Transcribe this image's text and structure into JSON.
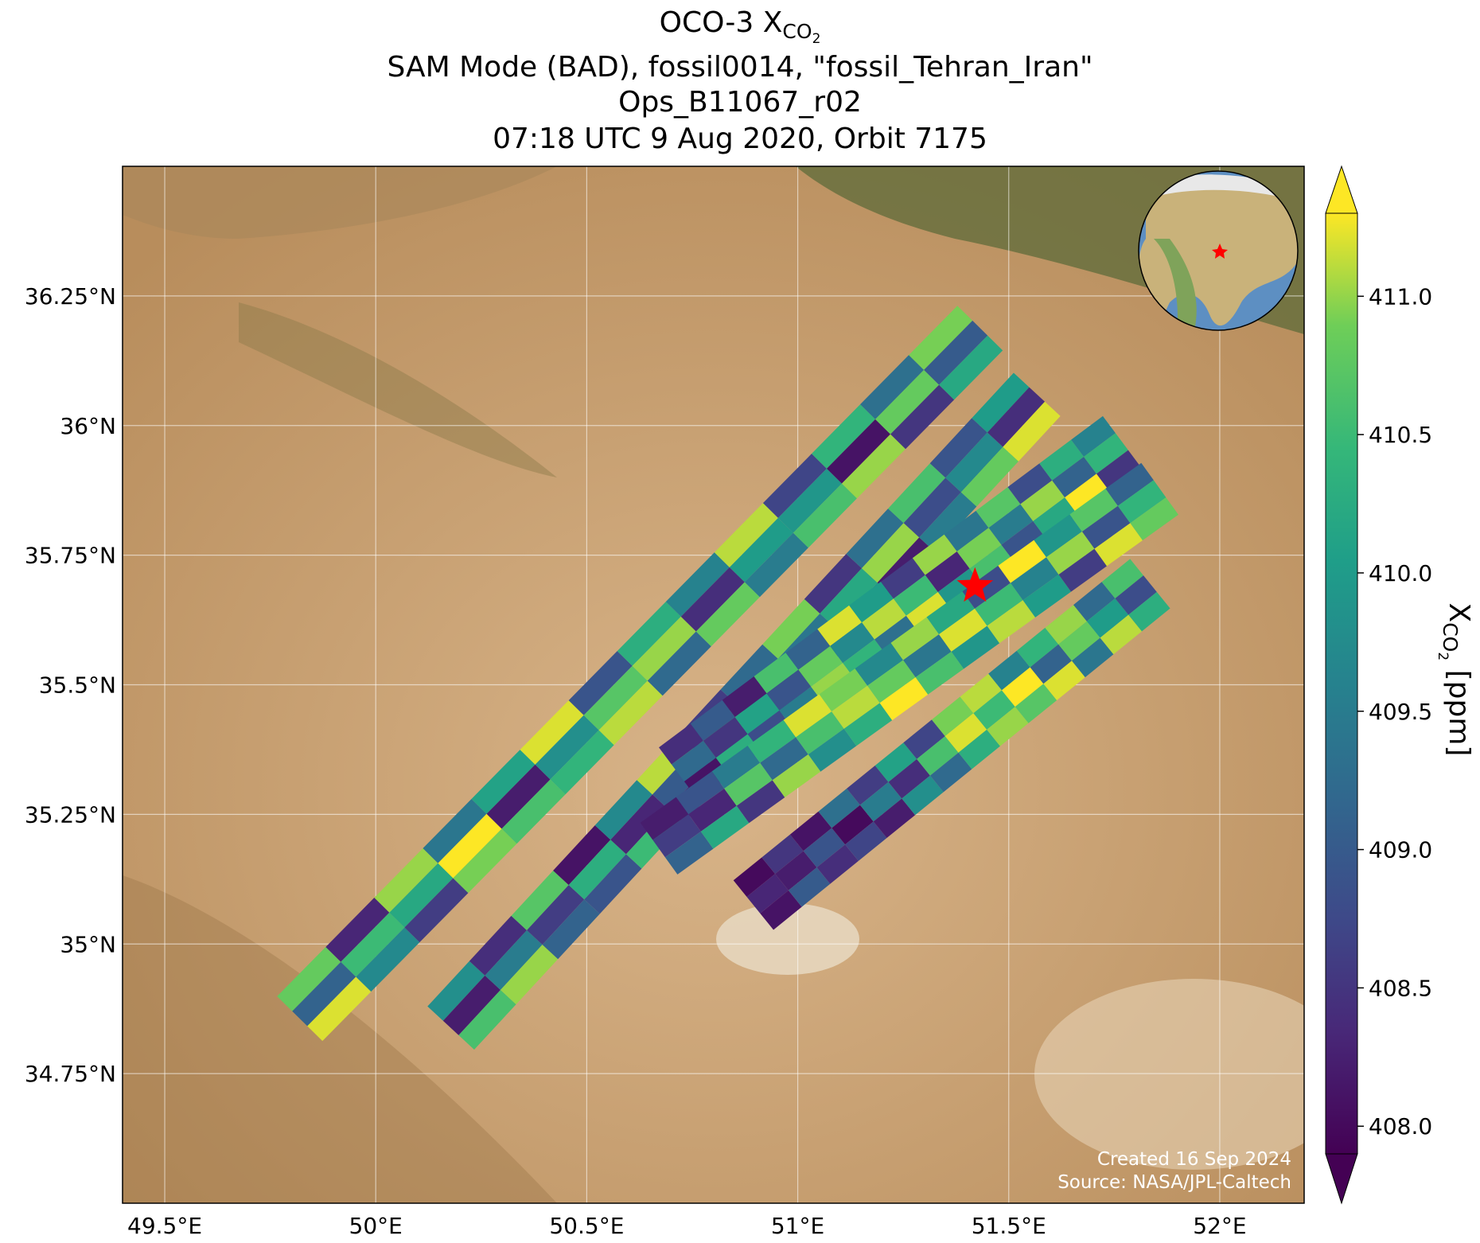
{
  "chart_data": {
    "type": "swath_map",
    "title": {
      "prefix": "OCO-3 X",
      "sub": "CO",
      "subsub": "2"
    },
    "subtitle_lines": [
      "SAM Mode (BAD), fossil0014, \"fossil_Tehran_Iran\"",
      "Ops_B11067_r02",
      "07:18 UTC 9 Aug 2020, Orbit 7175"
    ],
    "xlim": [
      49.4,
      52.2
    ],
    "ylim": [
      34.5,
      36.5
    ],
    "xticks": [
      {
        "value": 49.5,
        "label": "49.5°E"
      },
      {
        "value": 50,
        "label": "50°E"
      },
      {
        "value": 50.5,
        "label": "50.5°E"
      },
      {
        "value": 51,
        "label": "51°E"
      },
      {
        "value": 51.5,
        "label": "51.5°E"
      },
      {
        "value": 52,
        "label": "52°E"
      }
    ],
    "yticks": [
      {
        "value": 34.75,
        "label": "34.75°N"
      },
      {
        "value": 35,
        "label": "35°N"
      },
      {
        "value": 35.25,
        "label": "35.25°N"
      },
      {
        "value": 35.5,
        "label": "35.5°N"
      },
      {
        "value": 35.75,
        "label": "35.75°N"
      },
      {
        "value": 36,
        "label": "36°N"
      },
      {
        "value": 36.25,
        "label": "36.25°N"
      }
    ],
    "grid": true,
    "colormap": "viridis",
    "clim": [
      407.9,
      411.3
    ],
    "colorbar_ticks": [
      {
        "value": 408,
        "label": "408.0"
      },
      {
        "value": 408.5,
        "label": "408.5"
      },
      {
        "value": 409,
        "label": "409.0"
      },
      {
        "value": 409.5,
        "label": "409.5"
      },
      {
        "value": 410,
        "label": "410.0"
      },
      {
        "value": 410.5,
        "label": "410.5"
      },
      {
        "value": 411,
        "label": "411.0"
      }
    ],
    "colorbar_label": {
      "prefix": "X",
      "sub": "CO",
      "subsub": "2",
      "suffix": " [ppm]"
    },
    "target": {
      "lon": 51.42,
      "lat": 35.69,
      "color": "#ff0000"
    },
    "strips": [
      {
        "start": [
          49.82,
          34.856
        ],
        "end": [
          51.432,
          36.188
        ],
        "values": [
          [
            410.8,
            409.1,
            411.2
          ],
          [
            408.3,
            410.5,
            409.7
          ],
          [
            411.0,
            410.2,
            408.6
          ],
          [
            409.4,
            411.3,
            410.9
          ],
          [
            410.1,
            408.2,
            410.6
          ],
          [
            411.2,
            409.8,
            410.4
          ],
          [
            408.9,
            410.7,
            411.1
          ],
          [
            410.3,
            411.0,
            409.2
          ],
          [
            409.6,
            408.4,
            410.8
          ],
          [
            411.1,
            410.0,
            409.5
          ],
          [
            408.7,
            409.9,
            410.6
          ],
          [
            410.4,
            408.1,
            411.0
          ],
          [
            409.3,
            410.8,
            408.5
          ],
          [
            410.9,
            409.0,
            410.2
          ]
        ]
      },
      {
        "start": [
          50.178,
          34.838
        ],
        "end": [
          51.567,
          36.06
        ],
        "values": [
          [
            409.8,
            408.2,
            410.6
          ],
          [
            408.4,
            409.5,
            411.0
          ],
          [
            410.7,
            408.6,
            409.1
          ],
          [
            408.1,
            410.3,
            408.9
          ],
          [
            409.7,
            408.3,
            410.5
          ],
          [
            411.1,
            409.0,
            408.4
          ],
          [
            408.6,
            410.8,
            409.6
          ],
          [
            409.2,
            408.0,
            410.1
          ],
          [
            410.9,
            409.4,
            408.7
          ],
          [
            408.5,
            410.2,
            409.9
          ],
          [
            409.3,
            411.0,
            408.2
          ],
          [
            410.6,
            408.8,
            409.5
          ],
          [
            408.9,
            409.7,
            410.8
          ],
          [
            410.0,
            408.4,
            411.2
          ]
        ]
      },
      {
        "start": [
          50.716,
          35.33
        ],
        "end": [
          51.768,
          35.969
        ],
        "values": [
          [
            408.4,
            409.2,
            408.1
          ],
          [
            409.0,
            408.5,
            410.3
          ],
          [
            408.2,
            410.1,
            408.8
          ],
          [
            410.6,
            408.9,
            409.5
          ],
          [
            409.1,
            410.8,
            411.0
          ],
          [
            411.2,
            409.7,
            410.4
          ],
          [
            410.0,
            411.1,
            409.3
          ],
          [
            408.6,
            410.5,
            411.2
          ],
          [
            411.0,
            408.3,
            409.9
          ],
          [
            409.4,
            410.9,
            410.6
          ],
          [
            410.7,
            409.5,
            408.9
          ],
          [
            408.8,
            411.0,
            410.2
          ],
          [
            410.3,
            409.1,
            411.3
          ],
          [
            409.6,
            410.4,
            408.5
          ]
        ]
      },
      {
        "start": [
          50.671,
          35.184
        ],
        "end": [
          51.858,
          35.878
        ],
        "values": [
          [
            408.2,
            408.6,
            409.1
          ],
          [
            408.9,
            408.3,
            410.2
          ],
          [
            409.5,
            410.7,
            408.5
          ],
          [
            410.4,
            409.2,
            411.0
          ],
          [
            411.2,
            410.6,
            409.8
          ],
          [
            410.9,
            411.1,
            410.3
          ],
          [
            409.7,
            410.8,
            411.3
          ],
          [
            411.0,
            409.4,
            410.6
          ],
          [
            410.2,
            411.2,
            409.9
          ],
          [
            408.8,
            410.5,
            411.1
          ],
          [
            411.3,
            409.6,
            410.0
          ],
          [
            409.9,
            411.0,
            408.6
          ],
          [
            410.7,
            408.9,
            411.2
          ],
          [
            409.1,
            410.4,
            410.8
          ]
        ]
      },
      {
        "start": [
          50.895,
          35.075
        ],
        "end": [
          51.835,
          35.695
        ],
        "values": [
          [
            408.0,
            408.3,
            408.1
          ],
          [
            408.5,
            408.2,
            409.0
          ],
          [
            408.1,
            408.9,
            408.4
          ],
          [
            409.3,
            408.0,
            408.7
          ],
          [
            408.6,
            409.5,
            408.2
          ],
          [
            410.1,
            408.4,
            409.8
          ],
          [
            408.7,
            410.6,
            409.2
          ],
          [
            410.9,
            411.2,
            410.3
          ],
          [
            411.1,
            410.5,
            411.0
          ],
          [
            409.6,
            411.3,
            410.7
          ],
          [
            410.4,
            409.1,
            411.2
          ],
          [
            411.0,
            410.8,
            409.4
          ],
          [
            409.2,
            410.0,
            411.1
          ],
          [
            410.6,
            408.8,
            410.3
          ]
        ]
      }
    ],
    "footer_lines": [
      "Created 16 Sep 2024",
      "Source: NASA/JPL-Caltech"
    ]
  }
}
